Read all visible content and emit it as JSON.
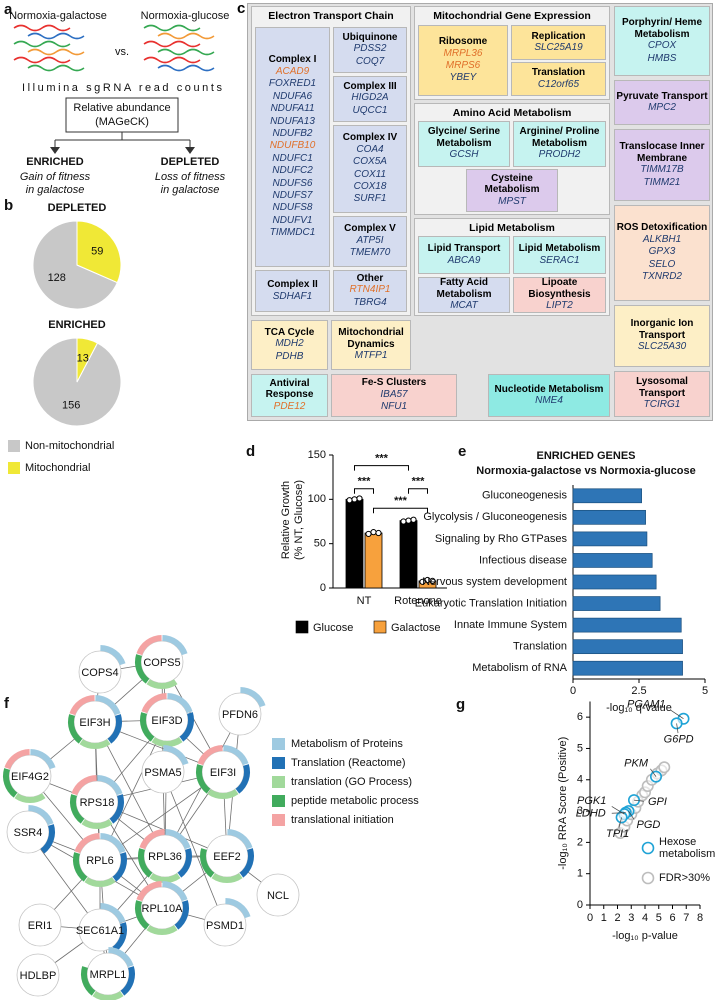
{
  "panel_a": {
    "label": "a",
    "left_condition": "Normoxia-galactose",
    "vs": "vs.",
    "right_condition": "Normoxia-glucose",
    "readout": "Illumina sgRNA read counts",
    "box": [
      "Relative abundance",
      "(MAGeCK)"
    ],
    "outcomes": [
      {
        "title": "ENRICHED",
        "color": "#1f8ac9",
        "lines": [
          "Gain of fitness",
          "in galactose"
        ]
      },
      {
        "title": "DEPLETED",
        "color": "#e26b28",
        "lines": [
          "Loss of fitness",
          "in galactose"
        ]
      }
    ]
  },
  "panel_c": {
    "label": "c",
    "sections": [
      {
        "title": "Electron Transport Chain",
        "groups": [
          {
            "title": "Complex I",
            "color": "#d5dcef",
            "genes": [
              {
                "text": "ACAD9",
                "color": "#e0702a"
              },
              "FOXRED1",
              "NDUFA6",
              "NDUFA11",
              "NDUFA13",
              "NDUFB2",
              {
                "text": "NDUFB10",
                "color": "#e0702a"
              },
              "NDUFC1",
              "NDUFC2",
              "NDUFS6",
              "NDUFS7",
              "NDUFS8",
              "NDUFV1",
              "TIMMDC1"
            ]
          },
          {
            "title": "Ubiquinone",
            "color": "#d5dcef",
            "genes": [
              "PDSS2",
              "COQ7"
            ]
          },
          {
            "title": "Complex III",
            "color": "#d5dcef",
            "genes": [
              "HIGD2A",
              "UQCC1"
            ]
          },
          {
            "title": "Complex IV",
            "color": "#d5dcef",
            "genes": [
              "COA4",
              "COX5A",
              "COX11",
              "COX18",
              "SURF1"
            ]
          },
          {
            "title": "Complex V",
            "color": "#d5dcef",
            "genes": [
              "ATP5I",
              "TMEM70"
            ]
          },
          {
            "title": "Complex II",
            "color": "#d5dcef",
            "genes": [
              "SDHAF1"
            ]
          },
          {
            "title": "Other",
            "color": "#d5dcef",
            "genes": [
              {
                "text": "RTN4IP1",
                "color": "#e0702a"
              },
              "TBRG4"
            ]
          }
        ]
      },
      {
        "title": "Mitochondrial Gene Expression",
        "groups": [
          {
            "title": "Ribosome",
            "color": "#fde49a",
            "genes": [
              {
                "text": "MRPL36",
                "color": "#e0702a"
              },
              {
                "text": "MRPS6",
                "color": "#e0702a"
              },
              "YBEY"
            ]
          },
          {
            "title": "Replication",
            "color": "#fde49a",
            "genes": [
              "SLC25A19"
            ]
          },
          {
            "title": "Translation",
            "color": "#fde49a",
            "genes": [
              "C12orf65"
            ]
          }
        ]
      },
      {
        "title": "Amino Acid Metabolism",
        "groups": [
          {
            "title": "Glycine/ Serine Metabolism",
            "color": "#c6f3f0",
            "genes": [
              "GCSH"
            ]
          },
          {
            "title": "Arginine/ Proline Metabolism",
            "color": "#c6f3f0",
            "genes": [
              "PRODH2"
            ]
          },
          {
            "title": "Cysteine Metabolism",
            "color": "#dccaec",
            "genes": [
              "MPST"
            ]
          }
        ]
      },
      {
        "title": "Lipid Metabolism",
        "groups": [
          {
            "title": "Lipid Transport",
            "color": "#c6f3f0",
            "genes": [
              "ABCA9"
            ]
          },
          {
            "title": "Lipid Metabolism",
            "color": "#c6f3f0",
            "genes": [
              "SERAC1"
            ]
          },
          {
            "title": "Fatty Acid Metabolism",
            "color": "#d5dcef",
            "genes": [
              "MCAT"
            ]
          },
          {
            "title": "Lipoate Biosynthesis",
            "color": "#f8d2ce",
            "genes": [
              "LIPT2"
            ]
          }
        ]
      }
    ],
    "groups": [
      {
        "title": "Porphyrin/ Heme Metabolism",
        "color": "#c6f3f0",
        "genes": [
          "CPOX",
          "HMBS"
        ]
      },
      {
        "title": "Pyruvate Transport",
        "color": "#dccaec",
        "genes": [
          "MPC2"
        ]
      },
      {
        "title": "Translocase Inner Membrane",
        "color": "#dccaec",
        "genes": [
          "TIMM17B",
          "TIMM21"
        ]
      },
      {
        "title": "ROS Detoxification",
        "color": "#fbe1cf",
        "genes": [
          "ALKBH1",
          "GPX3",
          "SELO",
          "TXNRD2"
        ]
      },
      {
        "title": "Inorganic Ion Transport",
        "color": "#fdefc6",
        "genes": [
          "SLC25A30"
        ]
      },
      {
        "title": "Lysosomal Transport",
        "color": "#f8d2ce",
        "genes": [
          "TCIRG1"
        ]
      },
      {
        "title": "TCA Cycle",
        "color": "#fdefc6",
        "genes": [
          "MDH2",
          "PDHB"
        ]
      },
      {
        "title": "Mitochondrial Dynamics",
        "color": "#fdefc6",
        "genes": [
          "MTFP1"
        ]
      },
      {
        "title": "Antiviral Response",
        "color": "#c6f3f0",
        "genes": [
          {
            "text": "PDE12",
            "color": "#e0702a"
          }
        ]
      },
      {
        "title": "Fe-S Clusters",
        "color": "#f8d2ce",
        "genes": [
          "IBA57",
          "NFU1"
        ]
      },
      {
        "title": "Nucleotide Metabolism",
        "color": "#8eeae3",
        "genes": [
          "NME4"
        ]
      }
    ]
  },
  "panel_f": {
    "label": "f",
    "legend": [
      {
        "name": "Metabolism of Proteins",
        "color": "#9ecae1"
      },
      {
        "name": "Translation (Reactome)",
        "color": "#2171b5"
      },
      {
        "name": "translation (GO Process)",
        "color": "#a1d99b"
      },
      {
        "name": "peptide metabolic process",
        "color": "#41ab5d"
      },
      {
        "name": "translational initiation",
        "color": "#f4a3a3"
      }
    ],
    "nodes": [
      {
        "label": "COPS4",
        "terms": [
          0
        ]
      },
      {
        "label": "COPS5",
        "terms": [
          0,
          2,
          3,
          4
        ]
      },
      {
        "label": "EIF3H",
        "terms": [
          0,
          1,
          2,
          3,
          4
        ]
      },
      {
        "label": "EIF3D",
        "terms": [
          0,
          1,
          2,
          3,
          4
        ]
      },
      {
        "label": "PFDN6",
        "terms": [
          0
        ]
      },
      {
        "label": "EIF4G2",
        "terms": [
          0,
          2,
          3,
          4
        ]
      },
      {
        "label": "PSMA5",
        "terms": [
          0
        ]
      },
      {
        "label": "EIF3I",
        "terms": [
          0,
          1,
          2,
          3,
          4
        ]
      },
      {
        "label": "RPS18",
        "terms": [
          0,
          1,
          2,
          3,
          4
        ]
      },
      {
        "label": "SSR4",
        "terms": [
          0,
          1
        ]
      },
      {
        "label": "RPL6",
        "terms": [
          0,
          1,
          2,
          3,
          4
        ]
      },
      {
        "label": "RPL36",
        "terms": [
          0,
          1,
          2,
          3,
          4
        ]
      },
      {
        "label": "EEF2",
        "terms": [
          0,
          1,
          2,
          3
        ]
      },
      {
        "label": "NCL",
        "terms": []
      },
      {
        "label": "RPL10A",
        "terms": [
          0,
          1,
          2,
          3,
          4
        ]
      },
      {
        "label": "PSMD1",
        "terms": [
          0
        ]
      },
      {
        "label": "ERI1",
        "terms": []
      },
      {
        "label": "SEC61A1",
        "terms": [
          0,
          1
        ]
      },
      {
        "label": "MRPL1",
        "terms": [
          0,
          1,
          2,
          3
        ]
      },
      {
        "label": "HDLBP",
        "terms": []
      }
    ],
    "edges": [
      [
        0,
        1
      ],
      [
        0,
        2
      ],
      [
        1,
        2
      ],
      [
        1,
        3
      ],
      [
        1,
        7
      ],
      [
        1,
        6
      ],
      [
        2,
        3
      ],
      [
        2,
        5
      ],
      [
        2,
        7
      ],
      [
        2,
        8
      ],
      [
        2,
        10
      ],
      [
        2,
        11
      ],
      [
        3,
        7
      ],
      [
        3,
        8
      ],
      [
        3,
        10
      ],
      [
        3,
        11
      ],
      [
        3,
        6
      ],
      [
        4,
        11
      ],
      [
        4,
        12
      ],
      [
        5,
        8
      ],
      [
        5,
        10
      ],
      [
        6,
        15
      ],
      [
        6,
        11
      ],
      [
        7,
        8
      ],
      [
        7,
        10
      ],
      [
        7,
        11
      ],
      [
        7,
        12
      ],
      [
        8,
        10
      ],
      [
        8,
        11
      ],
      [
        8,
        12
      ],
      [
        8,
        14
      ],
      [
        9,
        10
      ],
      [
        9,
        14
      ],
      [
        10,
        11
      ],
      [
        10,
        12
      ],
      [
        10,
        14
      ],
      [
        10,
        17
      ],
      [
        10,
        18
      ],
      [
        11,
        12
      ],
      [
        11,
        14
      ],
      [
        11,
        17
      ],
      [
        12,
        14
      ],
      [
        12,
        13
      ],
      [
        14,
        17
      ],
      [
        14,
        18
      ],
      [
        14,
        15
      ],
      [
        16,
        10
      ],
      [
        17,
        18
      ],
      [
        19,
        17
      ],
      [
        9,
        17
      ],
      [
        16,
        17
      ]
    ]
  },
  "chart_data": [
    {
      "type": "pie",
      "panel": "b",
      "categories": [
        "Non-mitochondrial",
        "Mitochondrial"
      ],
      "colors": [
        "#c8c8c8",
        "#f0e836"
      ],
      "series": [
        {
          "name": "DEPLETED",
          "color": "#e26b28",
          "values": [
            128,
            59
          ]
        },
        {
          "name": "ENRICHED",
          "color": "#1f8ac9",
          "values": [
            156,
            13
          ]
        }
      ]
    },
    {
      "type": "bar",
      "panel": "d",
      "categories": [
        "NT",
        "Rotenone"
      ],
      "ylabel": [
        "Relative Growth",
        "(% NT, Glucose)"
      ],
      "series": [
        {
          "name": "Glucose",
          "color": "#000000",
          "values": [
            100,
            76
          ],
          "points": [
            [
              99,
              100,
              101
            ],
            [
              75,
              76,
              77
            ]
          ]
        },
        {
          "name": "Galactose",
          "color": "#f7a13d",
          "values": [
            62,
            8
          ],
          "points": [
            [
              61,
              63,
              62
            ],
            [
              7,
              9,
              8
            ]
          ]
        }
      ],
      "ylim": [
        0,
        150
      ],
      "yticks": [
        0,
        50,
        100,
        150
      ],
      "annotations": [
        "***",
        "***",
        "***",
        "***"
      ]
    },
    {
      "type": "barh",
      "panel": "e",
      "title": "ENRICHED GENES",
      "subtitle": "Normoxia-galactose vs Normoxia-glucose",
      "categories": [
        "Gluconeogenesis",
        "Glycolysis / Gluconeogenesis",
        "Signaling by Rho GTPases",
        "Infectious disease",
        "Nervous system development",
        "Eukaryotic Translation Initiation",
        "Innate Immune System",
        "Translation",
        "Metabolism of RNA"
      ],
      "values": [
        2.6,
        2.75,
        2.8,
        3.0,
        3.15,
        3.3,
        4.1,
        4.15,
        4.15
      ],
      "color": "#2e75b6",
      "xlim": [
        0,
        5
      ],
      "xticks": [
        0,
        2.5,
        5
      ],
      "xlabel": "-log₁₀ q-value"
    },
    {
      "type": "scatter",
      "panel": "g",
      "xlabel": "-log₁₀ p-value",
      "ylabel": "-log₁₀ RRA Score (Positive)",
      "xlim": [
        0,
        8
      ],
      "xticks": [
        0,
        1,
        2,
        3,
        4,
        5,
        6,
        7,
        8
      ],
      "ylim": [
        0,
        6.5
      ],
      "yticks": [
        0,
        1,
        2,
        3,
        4,
        5,
        6
      ],
      "series": [
        {
          "name": "Hexose metabolism",
          "color": "#1fa3d6",
          "x": [
            6.8,
            6.3,
            4.8,
            3.2,
            2.8,
            2.6,
            2.5,
            2.3
          ],
          "y": [
            5.95,
            5.8,
            4.1,
            3.35,
            3.0,
            2.95,
            2.9,
            2.8
          ],
          "labels": [
            "PGAM1",
            "G6PD",
            "PKM",
            "GPI",
            "PGD",
            "LDHD",
            "PGK1",
            "TPI1"
          ]
        },
        {
          "name": "FDR>30%",
          "color": "#bdbdbd",
          "x": [
            2.2,
            2.5,
            2.7,
            3.0,
            3.3,
            3.5,
            3.8,
            4.0,
            4.2,
            4.5,
            4.9,
            5.2,
            5.4
          ],
          "y": [
            2.3,
            2.5,
            2.7,
            2.9,
            3.1,
            3.3,
            3.5,
            3.6,
            3.8,
            4.0,
            4.2,
            4.3,
            4.4
          ]
        }
      ]
    }
  ]
}
